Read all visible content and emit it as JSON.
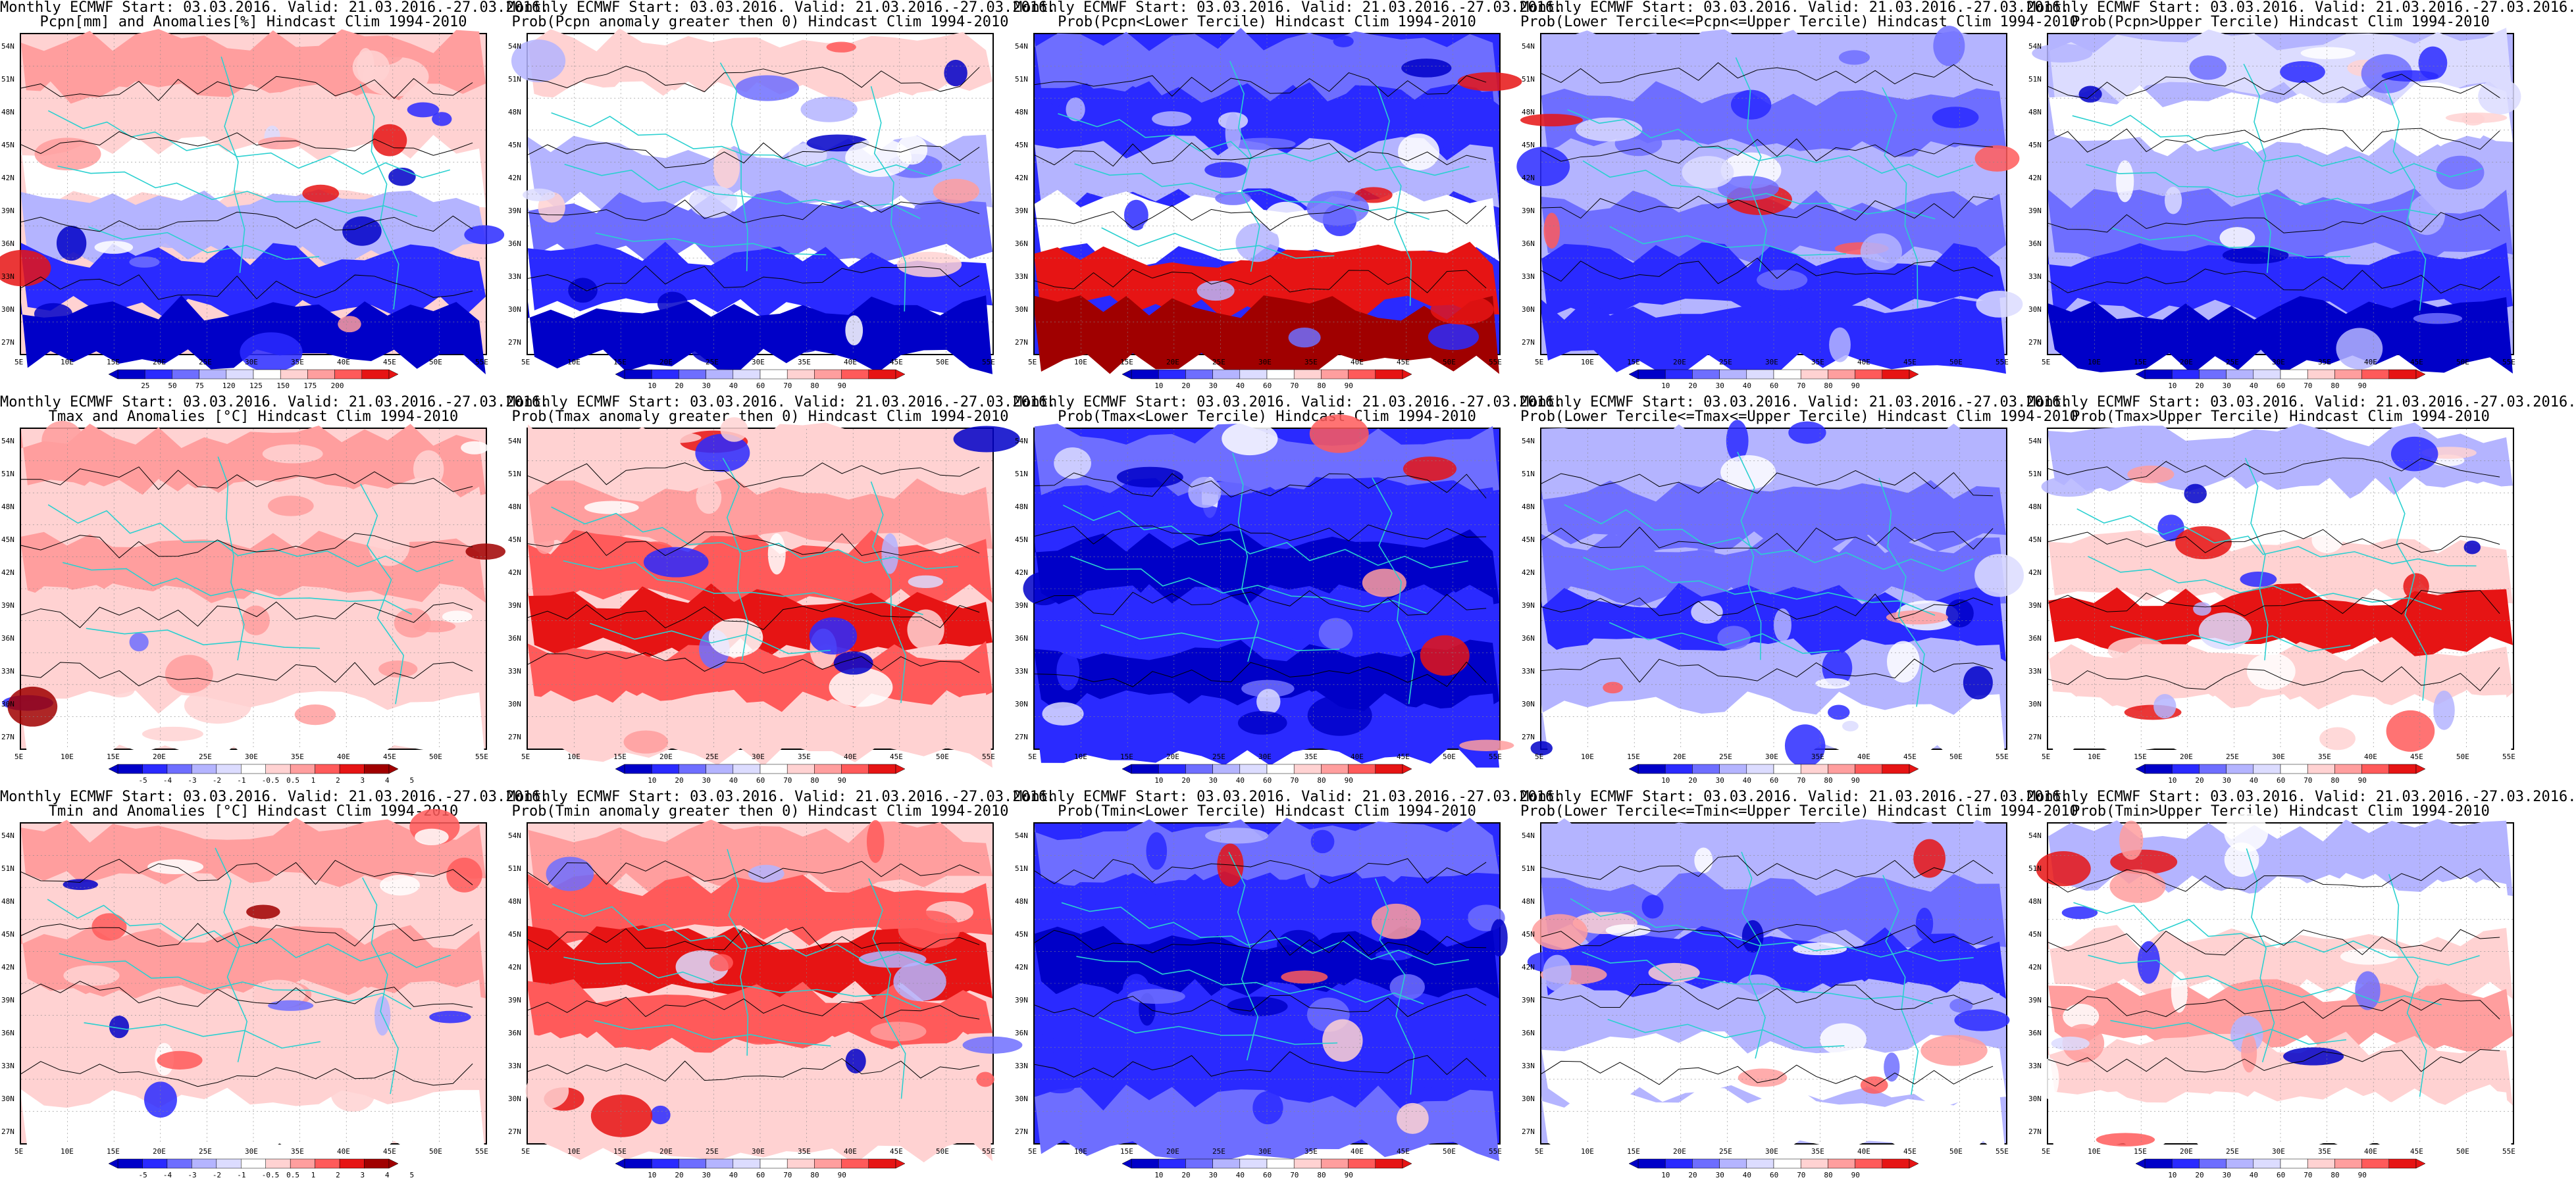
{
  "panels": [
    {
      "title1": "Monthly ECMWF Start: 03.03.2016. Valid: 21.03.2016.-27.03.2016.",
      "title2": "Pcpn[mm] and Anomalies[%] Hindcast Clim 1994-2010",
      "scale": "anom",
      "cbar": [
        "25",
        "50",
        "75",
        "120",
        "125",
        "150",
        "175",
        "200"
      ]
    },
    {
      "title1": "Monthly ECMWF Start: 03.03.2016. Valid: 21.03.2016.-27.03.2016.",
      "title2": "Prob(Pcpn anomaly greater then 0) Hindcast Clim 1994-2010",
      "scale": "prob",
      "cbar": [
        "10",
        "20",
        "30",
        "40",
        "60",
        "70",
        "80",
        "90"
      ]
    },
    {
      "title1": "Monthly ECMWF Start: 03.03.2016. Valid: 21.03.2016.-27.03.2016.",
      "title2": "Prob(Pcpn<Lower Tercile) Hindcast Clim 1994-2010",
      "scale": "prob",
      "cbar": [
        "10",
        "20",
        "30",
        "40",
        "60",
        "70",
        "80",
        "90"
      ]
    },
    {
      "title1": "Monthly ECMWF Start: 03.03.2016. Valid: 21.03.2016.-27.03.2016.",
      "title2": "Prob(Lower Tercile<=Pcpn<=Upper Tercile) Hindcast Clim 1994-2010",
      "scale": "prob",
      "cbar": [
        "10",
        "20",
        "30",
        "40",
        "60",
        "70",
        "80",
        "90"
      ]
    },
    {
      "title1": "Monthly ECMWF Start: 03.03.2016. Valid: 21.03.2016.-27.03.2016.",
      "title2": "Prob(Pcpn>Upper Tercile) Hindcast Clim 1994-2010",
      "scale": "prob",
      "cbar": [
        "10",
        "20",
        "30",
        "40",
        "60",
        "70",
        "80",
        "90"
      ]
    },
    {
      "title1": "Monthly ECMWF Start: 03.03.2016. Valid: 21.03.2016.-27.03.2016.",
      "title2": "Tmax and Anomalies [°C] Hindcast Clim 1994-2010",
      "scale": "temp",
      "cbar": [
        "-5",
        "-4",
        "-3",
        "-2",
        "-1",
        "-0.5",
        "0.5",
        "1",
        "2",
        "3",
        "4",
        "5"
      ]
    },
    {
      "title1": "Monthly ECMWF Start: 03.03.2016. Valid: 21.03.2016.-27.03.2016.",
      "title2": "Prob(Tmax anomaly greater then 0) Hindcast Clim 1994-2010",
      "scale": "prob",
      "cbar": [
        "10",
        "20",
        "30",
        "40",
        "60",
        "70",
        "80",
        "90"
      ]
    },
    {
      "title1": "Monthly ECMWF Start: 03.03.2016. Valid: 21.03.2016.-27.03.2016.",
      "title2": "Prob(Tmax<Lower Tercile) Hindcast Clim 1994-2010",
      "scale": "prob",
      "cbar": [
        "10",
        "20",
        "30",
        "40",
        "60",
        "70",
        "80",
        "90"
      ]
    },
    {
      "title1": "Monthly ECMWF Start: 03.03.2016. Valid: 21.03.2016.-27.03.2016.",
      "title2": "Prob(Lower Tercile<=Tmax<=Upper Tercile) Hindcast Clim 1994-2010",
      "scale": "prob",
      "cbar": [
        "10",
        "20",
        "30",
        "40",
        "60",
        "70",
        "80",
        "90"
      ]
    },
    {
      "title1": "Monthly ECMWF Start: 03.03.2016. Valid: 21.03.2016.-27.03.2016.",
      "title2": "Prob(Tmax>Upper Tercile) Hindcast Clim 1994-2010",
      "scale": "prob",
      "cbar": [
        "10",
        "20",
        "30",
        "40",
        "60",
        "70",
        "80",
        "90"
      ]
    },
    {
      "title1": "Monthly ECMWF Start: 03.03.2016. Valid: 21.03.2016.-27.03.2016.",
      "title2": "Tmin and Anomalies [°C] Hindcast Clim 1994-2010",
      "scale": "temp",
      "cbar": [
        "-5",
        "-4",
        "-3",
        "-2",
        "-1",
        "-0.5",
        "0.5",
        "1",
        "2",
        "3",
        "4",
        "5"
      ]
    },
    {
      "title1": "Monthly ECMWF Start: 03.03.2016. Valid: 21.03.2016.-27.03.2016.",
      "title2": "Prob(Tmin anomaly greater then 0) Hindcast Clim 1994-2010",
      "scale": "prob",
      "cbar": [
        "10",
        "20",
        "30",
        "40",
        "60",
        "70",
        "80",
        "90"
      ]
    },
    {
      "title1": "Monthly ECMWF Start: 03.03.2016. Valid: 21.03.2016.-27.03.2016.",
      "title2": "Prob(Tmin<Lower Tercile) Hindcast Clim 1994-2010",
      "scale": "prob",
      "cbar": [
        "10",
        "20",
        "30",
        "40",
        "60",
        "70",
        "80",
        "90"
      ]
    },
    {
      "title1": "Monthly ECMWF Start: 03.03.2016. Valid: 21.03.2016.-27.03.2016.",
      "title2": "Prob(Lower Tercile<=Tmin<=Upper Tercile) Hindcast Clim 1994-2010",
      "scale": "prob",
      "cbar": [
        "10",
        "20",
        "30",
        "40",
        "60",
        "70",
        "80",
        "90"
      ]
    },
    {
      "title1": "Monthly ECMWF Start: 03.03.2016. Valid: 21.03.2016.-27.03.2016.",
      "title2": "Prob(Tmin>Upper Tercile) Hindcast Clim 1994-2010",
      "scale": "prob",
      "cbar": [
        "10",
        "20",
        "30",
        "40",
        "60",
        "70",
        "80",
        "90"
      ]
    }
  ],
  "lat_labels": [
    "54N",
    "51N",
    "48N",
    "45N",
    "42N",
    "39N",
    "36N",
    "33N",
    "30N",
    "27N"
  ],
  "lon_labels": [
    "5E",
    "10E",
    "15E",
    "20E",
    "25E",
    "30E",
    "35E",
    "40E",
    "45E",
    "50E",
    "55E"
  ],
  "colors": {
    "deep_blue": "#0000c8",
    "blue": "#2a2aff",
    "mid_blue": "#6e6eff",
    "light_blue": "#b4b4ff",
    "pale_blue": "#dcdcff",
    "white": "#ffffff",
    "pale_red": "#ffd2d2",
    "light_red": "#ff9e9e",
    "mid_red": "#ff5a5a",
    "red": "#e61414",
    "deep_red": "#a00000",
    "coast": "#2ad0d0",
    "contour": "#000000"
  }
}
